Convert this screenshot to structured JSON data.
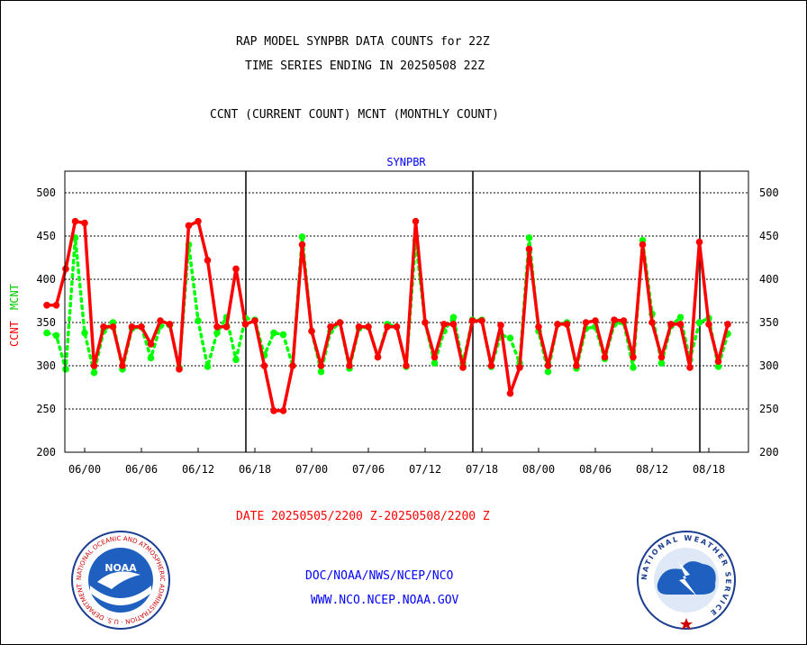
{
  "header": {
    "title_line1": "RAP MODEL SYNPBR DATA COUNTS for 22Z",
    "title_line2": "TIME SERIES ENDING IN 20250508 22Z",
    "subtitle": "CCNT (CURRENT COUNT) MCNT (MONTHLY COUNT)"
  },
  "footer": {
    "date_range": "DATE 20250505/2200 Z-20250508/2200 Z",
    "link1": "DOC/NOAA/NWS/NCEP/NCO",
    "link2": "WWW.NCO.NCEP.NOAA.GOV"
  },
  "logos": {
    "noaa_text": "NOAA",
    "noaa_ring": "NATIONAL OCEANIC AND ATMOSPHERIC ADMINISTRATION · U.S. DEPARTMENT OF COMMERCE ·",
    "nws_ring": "NATIONAL WEATHER SERVICE"
  },
  "colors": {
    "ccnt": "#ff0000",
    "mcnt": "#00ff00",
    "panel_title": "#0000ff",
    "date": "#ff0000",
    "links": "#0000ff"
  },
  "chart_data": {
    "type": "line",
    "title": "SYNPBR",
    "ylabel_parts": [
      "CCNT",
      "MCNT"
    ],
    "ylim": [
      200,
      525
    ],
    "yticks": [
      200,
      250,
      300,
      350,
      400,
      450,
      500
    ],
    "xtick_labels": [
      "06/00",
      "06/06",
      "06/12",
      "06/18",
      "07/00",
      "07/06",
      "07/12",
      "07/18",
      "08/00",
      "08/06",
      "08/12",
      "08/18"
    ],
    "xtick_hours": [
      2,
      8,
      14,
      20,
      26,
      32,
      38,
      44,
      50,
      56,
      62,
      68
    ],
    "day_boundaries_hours": [
      20,
      44,
      68
    ],
    "x_hours_range": [
      0,
      72
    ],
    "grid": true,
    "series": [
      {
        "name": "CCNT",
        "style": "solid",
        "x": [
          0,
          1,
          2,
          3,
          4,
          5,
          6,
          7,
          8,
          9,
          10,
          11,
          12,
          13,
          14,
          15,
          16,
          17,
          18,
          19,
          20,
          21,
          22,
          23,
          24,
          25,
          26,
          27,
          28,
          29,
          30,
          31,
          32,
          33,
          34,
          35,
          36,
          37,
          38,
          39,
          40,
          41,
          42,
          43,
          44,
          45,
          46,
          47,
          48,
          49,
          50,
          51,
          52,
          53,
          54,
          55,
          56,
          57,
          58,
          59,
          60,
          61,
          62,
          63,
          64,
          65,
          66,
          67,
          68,
          69,
          70,
          71,
          72
        ],
        "values": [
          370,
          370,
          412,
          467,
          465,
          300,
          345,
          345,
          300,
          345,
          345,
          325,
          352,
          348,
          296,
          462,
          467,
          422,
          345,
          345,
          412,
          348,
          352,
          300,
          248,
          248,
          300,
          440,
          340,
          300,
          345,
          350,
          300,
          345,
          345,
          310,
          345,
          345,
          300,
          467,
          350,
          310,
          348,
          348,
          298,
          352,
          352,
          300,
          347,
          268,
          298,
          435,
          345,
          300,
          348,
          348,
          300,
          350,
          352,
          310,
          353,
          352,
          310,
          440,
          350,
          310,
          348,
          348,
          298,
          443,
          348,
          305,
          348
        ]
      },
      {
        "name": "MCNT",
        "style": "dotted",
        "x": [
          0,
          1,
          2,
          3,
          4,
          5,
          6,
          7,
          8,
          9,
          10,
          11,
          12,
          13,
          14,
          15,
          16,
          17,
          18,
          19,
          20,
          21,
          22,
          23,
          24,
          25,
          26,
          27,
          28,
          29,
          30,
          31,
          32,
          33,
          34,
          35,
          36,
          37,
          38,
          39,
          40,
          41,
          42,
          43,
          44,
          45,
          46,
          47,
          48,
          49,
          50,
          51,
          52,
          53,
          54,
          55,
          56,
          57,
          58,
          59,
          60,
          61,
          62,
          63,
          64,
          65,
          66,
          67,
          68,
          69,
          70,
          71,
          72
        ],
        "values": [
          338,
          335,
          296,
          448,
          338,
          292,
          340,
          350,
          296,
          343,
          345,
          309,
          346,
          347,
          298,
          440,
          352,
          299,
          338,
          356,
          307,
          355,
          353,
          312,
          338,
          336,
          300,
          449,
          340,
          293,
          340,
          350,
          297,
          343,
          345,
          310,
          348,
          345,
          299,
          445,
          350,
          303,
          340,
          356,
          303,
          353,
          353,
          299,
          336,
          332,
          303,
          448,
          340,
          293,
          348,
          350,
          297,
          343,
          345,
          308,
          348,
          350,
          298,
          445,
          360,
          303,
          346,
          356,
          307,
          350,
          355,
          299,
          337
        ]
      }
    ]
  }
}
